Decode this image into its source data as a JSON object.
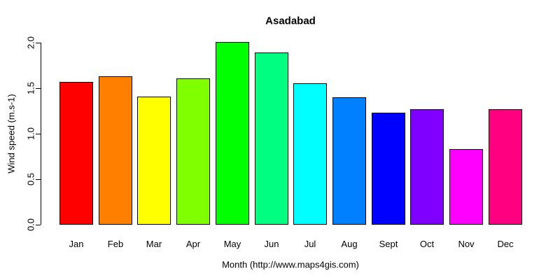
{
  "figure": {
    "background_color": "#FFFFFF",
    "text_color": "#000000"
  },
  "chart_data": {
    "type": "bar",
    "title": "Asadabad",
    "xlabel": "Month (http://www.maps4gis.com)",
    "ylabel": "Wind speed (m.s-1)",
    "categories": [
      "Jan",
      "Feb",
      "Mar",
      "Apr",
      "May",
      "Jun",
      "Jul",
      "Aug",
      "Sept",
      "Oct",
      "Nov",
      "Dec"
    ],
    "values": [
      1.57,
      1.63,
      1.41,
      1.61,
      2.01,
      1.89,
      1.55,
      1.4,
      1.23,
      1.27,
      0.83,
      1.27
    ],
    "bar_colors": [
      "#FF0000",
      "#FF8000",
      "#FFFF00",
      "#80FF00",
      "#00FF00",
      "#00FF80",
      "#00FFFF",
      "#0080FF",
      "#0000FF",
      "#8000FF",
      "#FF00FF",
      "#FF0080"
    ],
    "bar_border_color": "#000000",
    "ytick_labels": [
      "0.0",
      "0.5",
      "1.0",
      "1.5",
      "2.0"
    ],
    "ytick_values": [
      0.0,
      0.5,
      1.0,
      1.5,
      2.0
    ],
    "ylim": [
      0.0,
      2.0
    ],
    "grid": false,
    "legend_position": "none"
  }
}
